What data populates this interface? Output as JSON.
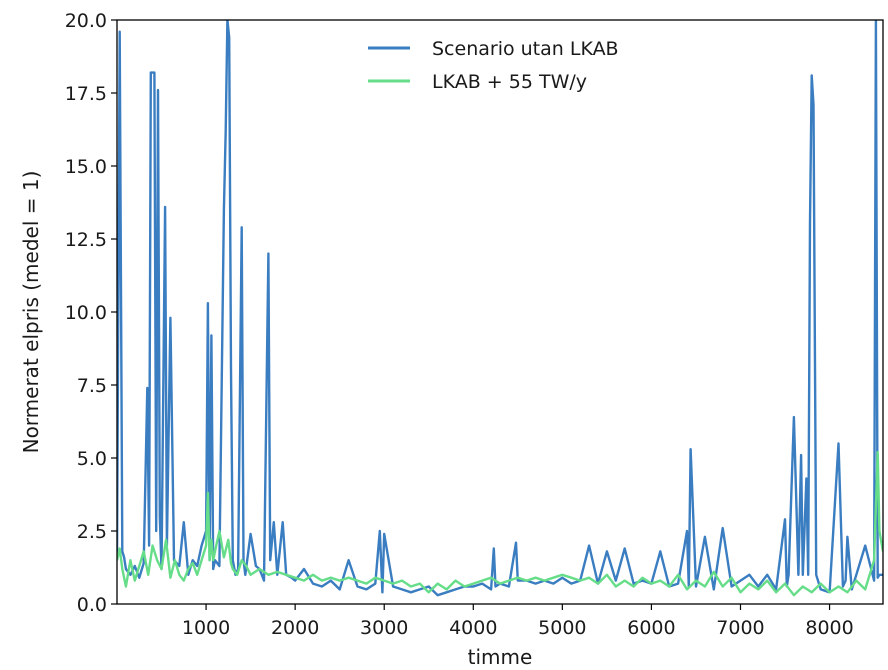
{
  "chart_data": {
    "type": "line",
    "xlabel": "timme",
    "ylabel": "Normerat elpris (medel = 1)",
    "xlim": [
      0,
      8600
    ],
    "ylim": [
      0,
      20
    ],
    "xticks": [
      1000,
      2000,
      3000,
      4000,
      5000,
      6000,
      7000,
      8000
    ],
    "yticks": [
      0.0,
      2.5,
      5.0,
      7.5,
      10.0,
      12.5,
      15.0,
      17.5,
      20.0
    ],
    "xtick_labels": [
      "1000",
      "2000",
      "3000",
      "4000",
      "5000",
      "6000",
      "7000",
      "8000"
    ],
    "ytick_labels": [
      "0.0",
      "2.5",
      "5.0",
      "7.5",
      "10.0",
      "12.5",
      "15.0",
      "17.5",
      "20.0"
    ],
    "grid": false,
    "legend_position": "top-center",
    "series": [
      {
        "name": "Scenario utan LKAB",
        "color": "#3a7dc1",
        "x": [
          0,
          30,
          60,
          80,
          100,
          150,
          200,
          250,
          300,
          340,
          360,
          380,
          420,
          440,
          460,
          480,
          500,
          540,
          560,
          600,
          640,
          700,
          750,
          800,
          850,
          900,
          950,
          1000,
          1020,
          1040,
          1060,
          1080,
          1100,
          1150,
          1200,
          1220,
          1240,
          1260,
          1280,
          1300,
          1330,
          1360,
          1400,
          1420,
          1440,
          1500,
          1560,
          1600,
          1650,
          1700,
          1720,
          1760,
          1800,
          1860,
          1900,
          1960,
          2000,
          2100,
          2200,
          2300,
          2400,
          2500,
          2600,
          2700,
          2800,
          2900,
          2950,
          2980,
          3000,
          3100,
          3200,
          3300,
          3400,
          3500,
          3600,
          3700,
          3800,
          3900,
          4000,
          4100,
          4200,
          4230,
          4250,
          4300,
          4400,
          4480,
          4500,
          4600,
          4700,
          4800,
          4900,
          5000,
          5100,
          5200,
          5300,
          5400,
          5500,
          5600,
          5700,
          5800,
          5900,
          6000,
          6100,
          6200,
          6300,
          6400,
          6420,
          6440,
          6500,
          6600,
          6700,
          6800,
          6900,
          7000,
          7100,
          7200,
          7300,
          7400,
          7500,
          7520,
          7540,
          7600,
          7650,
          7680,
          7700,
          7740,
          7760,
          7780,
          7800,
          7820,
          7850,
          7900,
          8000,
          8100,
          8150,
          8180,
          8200,
          8250,
          8300,
          8400,
          8500,
          8520,
          8540,
          8560,
          8600
        ],
        "y": [
          1.5,
          19.6,
          1.8,
          1.6,
          1.2,
          1.0,
          1.3,
          0.9,
          1.4,
          7.4,
          2.0,
          18.2,
          18.2,
          2.5,
          17.6,
          3.0,
          1.2,
          13.6,
          2.0,
          9.8,
          1.5,
          1.3,
          2.8,
          1.0,
          1.5,
          1.3,
          2.0,
          2.5,
          10.3,
          1.5,
          9.2,
          1.2,
          1.5,
          1.3,
          13.5,
          16.2,
          20.0,
          19.4,
          8.0,
          1.5,
          1.0,
          1.2,
          12.9,
          1.5,
          1.0,
          2.4,
          1.3,
          1.2,
          0.8,
          12.0,
          1.5,
          2.8,
          1.0,
          2.8,
          1.0,
          0.9,
          0.8,
          1.2,
          0.7,
          0.6,
          0.8,
          0.5,
          1.5,
          0.6,
          0.5,
          0.7,
          2.5,
          0.4,
          2.4,
          0.6,
          0.5,
          0.4,
          0.5,
          0.6,
          0.3,
          0.4,
          0.5,
          0.6,
          0.6,
          0.7,
          0.5,
          1.9,
          0.6,
          0.7,
          0.6,
          2.1,
          0.8,
          0.8,
          0.7,
          0.8,
          0.7,
          0.9,
          0.7,
          0.8,
          2.0,
          0.7,
          1.8,
          0.8,
          1.9,
          0.7,
          0.8,
          0.7,
          1.8,
          0.6,
          0.7,
          2.5,
          0.6,
          5.3,
          0.6,
          2.3,
          0.5,
          2.6,
          0.6,
          0.8,
          1.0,
          0.6,
          1.0,
          0.5,
          2.9,
          0.6,
          1.0,
          6.4,
          1.0,
          5.1,
          1.0,
          4.3,
          1.0,
          13.1,
          18.1,
          17.1,
          1.0,
          0.5,
          0.4,
          5.5,
          0.6,
          0.8,
          2.3,
          0.5,
          1.0,
          2.0,
          0.8,
          20.0,
          0.9,
          1.0,
          1.0
        ]
      },
      {
        "name": "LKAB + 55 TW/y",
        "color": "#66dd88",
        "x": [
          0,
          30,
          60,
          100,
          150,
          200,
          250,
          300,
          350,
          400,
          450,
          500,
          550,
          600,
          650,
          700,
          750,
          800,
          850,
          900,
          950,
          1000,
          1020,
          1040,
          1060,
          1080,
          1100,
          1150,
          1200,
          1250,
          1280,
          1300,
          1350,
          1400,
          1450,
          1500,
          1600,
          1700,
          1800,
          1900,
          2000,
          2100,
          2200,
          2300,
          2400,
          2500,
          2600,
          2700,
          2800,
          2900,
          3000,
          3100,
          3200,
          3300,
          3400,
          3500,
          3600,
          3700,
          3800,
          3900,
          4000,
          4100,
          4200,
          4300,
          4400,
          4500,
          4600,
          4700,
          4800,
          4900,
          5000,
          5100,
          5200,
          5300,
          5400,
          5500,
          5600,
          5700,
          5800,
          5900,
          6000,
          6100,
          6200,
          6300,
          6400,
          6500,
          6600,
          6700,
          6800,
          6900,
          7000,
          7100,
          7200,
          7300,
          7400,
          7500,
          7600,
          7700,
          7800,
          7900,
          8000,
          8100,
          8200,
          8300,
          8400,
          8500,
          8540,
          8560,
          8600
        ],
        "y": [
          1.5,
          1.9,
          1.2,
          0.6,
          1.5,
          0.8,
          1.3,
          1.8,
          1.0,
          2.0,
          1.5,
          1.2,
          2.2,
          0.9,
          1.5,
          1.0,
          0.8,
          1.2,
          1.4,
          1.0,
          1.5,
          2.0,
          3.8,
          1.5,
          2.2,
          1.5,
          1.8,
          2.5,
          1.6,
          2.2,
          1.4,
          1.2,
          1.0,
          1.5,
          1.3,
          1.0,
          1.2,
          1.0,
          1.1,
          1.0,
          0.9,
          0.8,
          1.0,
          0.8,
          0.9,
          0.8,
          0.9,
          0.8,
          0.7,
          0.9,
          0.8,
          0.7,
          0.8,
          0.6,
          0.7,
          0.4,
          0.7,
          0.5,
          0.8,
          0.6,
          0.7,
          0.8,
          0.9,
          0.7,
          0.8,
          0.9,
          0.8,
          0.9,
          0.8,
          0.9,
          1.0,
          0.9,
          0.8,
          0.9,
          0.7,
          1.0,
          0.6,
          0.8,
          0.6,
          0.9,
          0.7,
          0.8,
          0.6,
          1.0,
          0.5,
          0.8,
          0.6,
          1.1,
          0.6,
          0.9,
          0.4,
          0.7,
          0.5,
          0.8,
          0.4,
          0.7,
          0.3,
          0.6,
          0.4,
          0.7,
          0.4,
          0.6,
          0.4,
          0.8,
          0.5,
          1.5,
          5.2,
          2.5,
          1.8
        ]
      }
    ]
  }
}
